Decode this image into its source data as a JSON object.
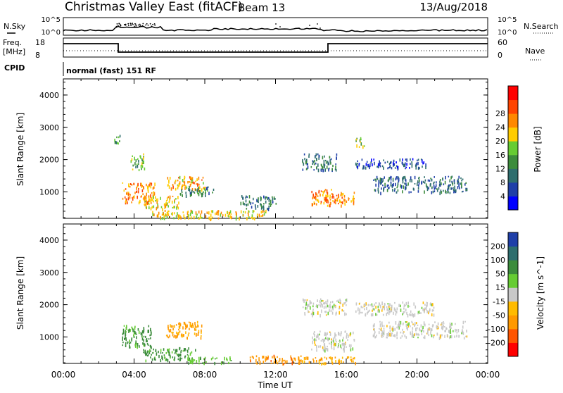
{
  "header": {
    "radar": "Christmas Valley East (fitACF)",
    "beam": "Beam 13",
    "date": "13/Aug/2018"
  },
  "summary": {
    "nsky_label": "N.Sky",
    "nsky_ticks": [
      "10^5",
      "10^0"
    ],
    "nsearch_label": "N.Search",
    "nsearch_ticks": [
      "10^5",
      "10^0"
    ],
    "freq_label": [
      "Freq.",
      "[MHz]"
    ],
    "freq_ticks": [
      "18",
      "8"
    ],
    "nave_label": "Nave",
    "nave_ticks": [
      "60",
      "0"
    ],
    "cpid_label": "CPID",
    "cpid_value": "normal (fast) 151 RF"
  },
  "colors": {
    "power": [
      "#0000ff",
      "#1f3fa8",
      "#2e6e6e",
      "#3c8c3c",
      "#66cc33",
      "#ffcc00",
      "#ff8800",
      "#ff4400",
      "#ff0000"
    ],
    "velocity": [
      "#ff0000",
      "#ff5500",
      "#ff9900",
      "#ffbb00",
      "#c8c8c8",
      "#66cc33",
      "#3c8c3c",
      "#2e6e6e",
      "#1f3fa8"
    ]
  },
  "chart_data": [
    {
      "type": "heatmap",
      "title": "Power",
      "ylabel": "Slant Range [km]",
      "xlabel": "Time UT",
      "x_ticks": [
        "00:00",
        "04:00",
        "08:00",
        "12:00",
        "16:00",
        "20:00",
        "00:00"
      ],
      "y_ticks": [
        1000,
        2000,
        3000,
        4000
      ],
      "ylim": [
        180,
        4500
      ],
      "colorbar_label": "Power [dB]",
      "colorbar_ticks": [
        4,
        8,
        12,
        16,
        20,
        24,
        28
      ],
      "regions": [
        {
          "x": [
            3.3,
            5.2
          ],
          "y": [
            700,
            1300
          ],
          "value": 26
        },
        {
          "x": [
            4.5,
            6.5
          ],
          "y": [
            500,
            900
          ],
          "value": 22
        },
        {
          "x": [
            5.8,
            8.0
          ],
          "y": [
            1100,
            1500
          ],
          "value": 24
        },
        {
          "x": [
            6.5,
            8.5
          ],
          "y": [
            900,
            1200
          ],
          "value": 12
        },
        {
          "x": [
            5.0,
            11.5
          ],
          "y": [
            200,
            450
          ],
          "value": 22
        },
        {
          "x": [
            10.0,
            12.0
          ],
          "y": [
            500,
            900
          ],
          "value": 10
        },
        {
          "x": [
            14.0,
            16.5
          ],
          "y": [
            600,
            1100
          ],
          "value": 26
        },
        {
          "x": [
            13.5,
            15.5
          ],
          "y": [
            1700,
            2200
          ],
          "value": 10
        },
        {
          "x": [
            16.5,
            20.5
          ],
          "y": [
            1750,
            2050
          ],
          "value": 7
        },
        {
          "x": [
            17.5,
            22.8
          ],
          "y": [
            1000,
            1500
          ],
          "value": 9
        },
        {
          "x": [
            2.8,
            3.2
          ],
          "y": [
            2500,
            2800
          ],
          "value": 14
        },
        {
          "x": [
            3.8,
            4.6
          ],
          "y": [
            1700,
            2200
          ],
          "value": 16
        },
        {
          "x": [
            16.5,
            17.0
          ],
          "y": [
            2400,
            2700
          ],
          "value": 18
        }
      ]
    },
    {
      "type": "heatmap",
      "title": "Velocity",
      "ylabel": "Slant Range [km]",
      "xlabel": "Time UT",
      "x_ticks": [
        "00:00",
        "04:00",
        "08:00",
        "12:00",
        "16:00",
        "20:00",
        "00:00"
      ],
      "y_ticks": [
        1000,
        2000,
        3000,
        4000
      ],
      "ylim": [
        180,
        4500
      ],
      "colorbar_label": "Velocity [m s^-1]",
      "colorbar_ticks": [
        200,
        100,
        50,
        15,
        -15,
        -50,
        -100,
        -200
      ],
      "regions": [
        {
          "x": [
            3.3,
            5.0
          ],
          "y": [
            700,
            1400
          ],
          "value": 60
        },
        {
          "x": [
            4.5,
            7.5
          ],
          "y": [
            300,
            700
          ],
          "value": 60
        },
        {
          "x": [
            7.0,
            9.5
          ],
          "y": [
            200,
            400
          ],
          "value": 40
        },
        {
          "x": [
            5.8,
            7.8
          ],
          "y": [
            1000,
            1500
          ],
          "value": -60
        },
        {
          "x": [
            10.5,
            13.5
          ],
          "y": [
            200,
            450
          ],
          "value": -90
        },
        {
          "x": [
            13.0,
            16.5
          ],
          "y": [
            200,
            400
          ],
          "value": -50
        },
        {
          "x": [
            14.0,
            16.5
          ],
          "y": [
            600,
            1200
          ],
          "value": 0
        },
        {
          "x": [
            13.5,
            16.0
          ],
          "y": [
            1700,
            2200
          ],
          "value": 0
        },
        {
          "x": [
            16.5,
            21.0
          ],
          "y": [
            1700,
            2100
          ],
          "value": 0
        },
        {
          "x": [
            17.5,
            22.8
          ],
          "y": [
            1000,
            1500
          ],
          "value": 0
        }
      ]
    }
  ]
}
